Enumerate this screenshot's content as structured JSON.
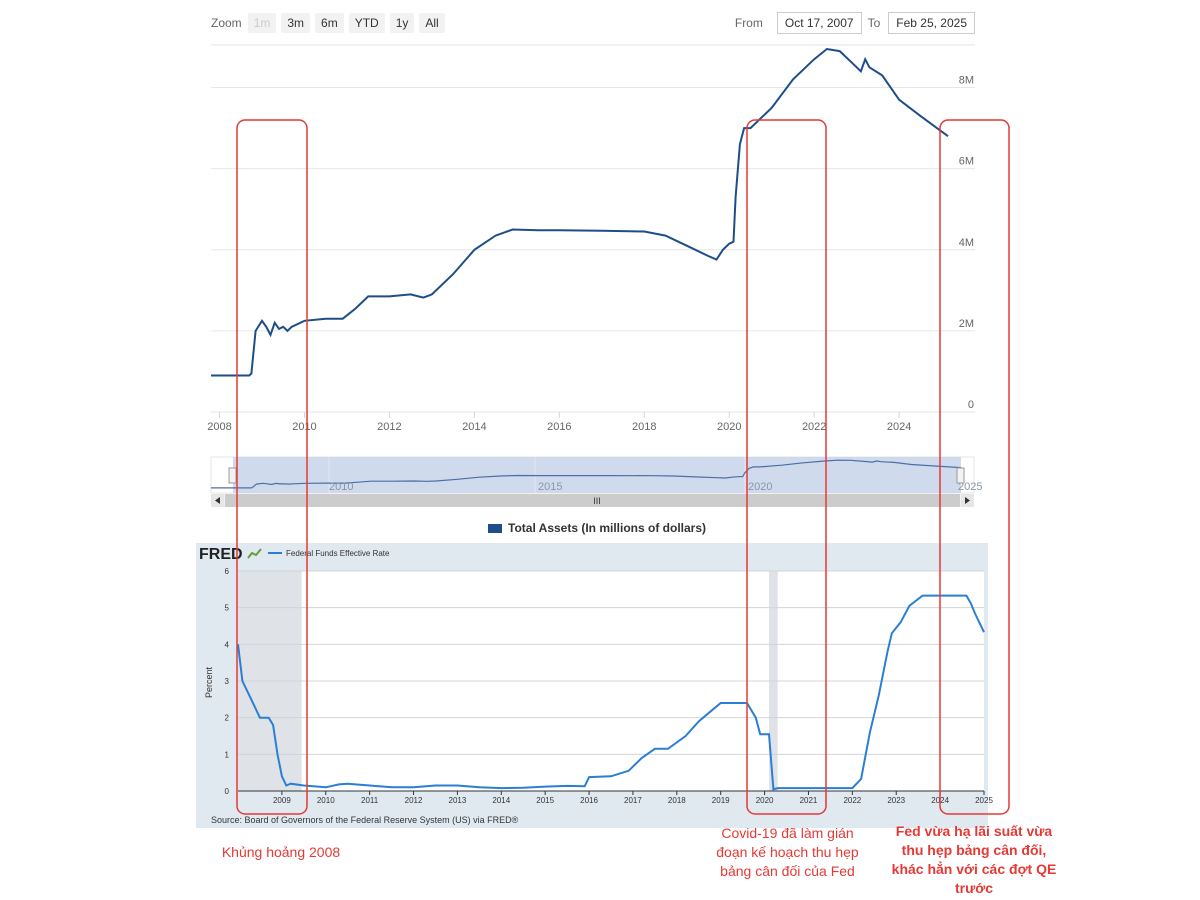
{
  "zoom": {
    "label": "Zoom",
    "buttons": [
      "1m",
      "3m",
      "6m",
      "YTD",
      "1y",
      "All"
    ]
  },
  "range": {
    "from_label": "From",
    "from_value": "Oct 17, 2007",
    "to_label": "To",
    "to_value": "Feb 25, 2025"
  },
  "navigator": {
    "labels": [
      "2010",
      "2015",
      "2020",
      "2025"
    ],
    "scroll_grip": "III"
  },
  "legend_top": "Total Assets (In millions of dollars)",
  "fred": {
    "logo": "FRED",
    "legend": "Federal Funds Effective Rate",
    "source": "Source: Board of Governors of the Federal Reserve System (US) via FRED®"
  },
  "annotations": {
    "left": "Khủng hoảng 2008",
    "middle": "Covid-19 đã làm gián đoạn kế hoạch thu hẹp bảng cân đối của Fed",
    "right": "Fed vừa hạ lãi suất vừa thu hẹp bảng cân đối, khác hẳn với các đợt QE trước"
  },
  "colors": {
    "assets_line": "#1d4e89",
    "rate_line": "#2a7fd4",
    "annotation": "#e53935"
  },
  "chart_data": [
    {
      "type": "line",
      "title": "Total Assets (In millions of dollars)",
      "xlabel": "",
      "ylabel": "",
      "xlim": [
        2007.8,
        2025.15
      ],
      "ylim": [
        0,
        9000000
      ],
      "x_ticks": [
        "2008",
        "2010",
        "2012",
        "2014",
        "2016",
        "2018",
        "2020",
        "2022",
        "2024"
      ],
      "y_ticks": [
        "0",
        "2M",
        "4M",
        "6M",
        "8M"
      ],
      "series": [
        {
          "name": "Total Assets",
          "x": [
            2007.8,
            2008.7,
            2008.75,
            2008.85,
            2009.0,
            2009.1,
            2009.2,
            2009.3,
            2009.4,
            2009.5,
            2009.6,
            2009.7,
            2010.0,
            2010.5,
            2010.9,
            2011.2,
            2011.5,
            2012.0,
            2012.5,
            2012.8,
            2013.0,
            2013.5,
            2014.0,
            2014.5,
            2014.9,
            2015.5,
            2016.0,
            2017.0,
            2018.0,
            2018.5,
            2019.0,
            2019.5,
            2019.7,
            2019.85,
            2020.0,
            2020.1,
            2020.15,
            2020.25,
            2020.35,
            2020.5,
            2021.0,
            2021.5,
            2022.0,
            2022.3,
            2022.6,
            2022.9,
            2023.1,
            2023.2,
            2023.3,
            2023.6,
            2024.0,
            2024.5,
            2025.15
          ],
          "values": [
            900000,
            900000,
            950000,
            2000000,
            2250000,
            2100000,
            1900000,
            2200000,
            2050000,
            2100000,
            2000000,
            2100000,
            2250000,
            2300000,
            2300000,
            2550000,
            2850000,
            2850000,
            2900000,
            2820000,
            2900000,
            3400000,
            4000000,
            4350000,
            4500000,
            4480000,
            4480000,
            4470000,
            4450000,
            4350000,
            4100000,
            3850000,
            3760000,
            4000000,
            4150000,
            4200000,
            5300000,
            6600000,
            7000000,
            7000000,
            7500000,
            8200000,
            8700000,
            8950000,
            8900000,
            8600000,
            8400000,
            8700000,
            8500000,
            8300000,
            7700000,
            7300000,
            6800000
          ]
        }
      ]
    },
    {
      "type": "line",
      "title": "Federal Funds Effective Rate",
      "xlabel": "",
      "ylabel": "Percent",
      "xlim": [
        2008.0,
        2025.0
      ],
      "ylim": [
        0,
        6
      ],
      "x_ticks": [
        "2009",
        "2010",
        "2011",
        "2012",
        "2013",
        "2014",
        "2015",
        "2016",
        "2017",
        "2018",
        "2019",
        "2020",
        "2021",
        "2022",
        "2023",
        "2024",
        "2025"
      ],
      "y_ticks": [
        "0",
        "1",
        "2",
        "3",
        "4",
        "5",
        "6"
      ],
      "recessions": [
        [
          2008.0,
          2009.45
        ],
        [
          2020.1,
          2020.3
        ]
      ],
      "series": [
        {
          "name": "Federal Funds Effective Rate",
          "x": [
            2008.0,
            2008.1,
            2008.3,
            2008.5,
            2008.6,
            2008.7,
            2008.8,
            2008.9,
            2009.0,
            2009.1,
            2009.2,
            2009.5,
            2010.0,
            2010.3,
            2010.5,
            2011.0,
            2011.5,
            2012.0,
            2012.5,
            2013.0,
            2013.5,
            2014.0,
            2014.5,
            2015.0,
            2015.5,
            2015.9,
            2016.0,
            2016.5,
            2016.9,
            2017.2,
            2017.5,
            2017.8,
            2018.2,
            2018.5,
            2018.8,
            2019.0,
            2019.4,
            2019.6,
            2019.8,
            2019.9,
            2020.1,
            2020.2,
            2020.3,
            2021.0,
            2021.5,
            2022.0,
            2022.2,
            2022.4,
            2022.6,
            2022.8,
            2022.9,
            2023.1,
            2023.3,
            2023.6,
            2024.0,
            2024.3,
            2024.6,
            2024.7,
            2024.8,
            2024.9,
            2025.0
          ],
          "values": [
            4.0,
            3.0,
            2.5,
            2.0,
            2.0,
            2.0,
            1.8,
            1.0,
            0.4,
            0.15,
            0.2,
            0.15,
            0.1,
            0.18,
            0.2,
            0.15,
            0.1,
            0.1,
            0.15,
            0.15,
            0.1,
            0.08,
            0.09,
            0.12,
            0.14,
            0.13,
            0.38,
            0.4,
            0.55,
            0.9,
            1.15,
            1.15,
            1.5,
            1.9,
            2.2,
            2.4,
            2.4,
            2.4,
            2.0,
            1.55,
            1.55,
            0.05,
            0.08,
            0.08,
            0.08,
            0.08,
            0.33,
            1.6,
            2.6,
            3.8,
            4.3,
            4.6,
            5.05,
            5.33,
            5.33,
            5.33,
            5.33,
            5.12,
            4.83,
            4.58,
            4.33
          ]
        }
      ]
    }
  ]
}
